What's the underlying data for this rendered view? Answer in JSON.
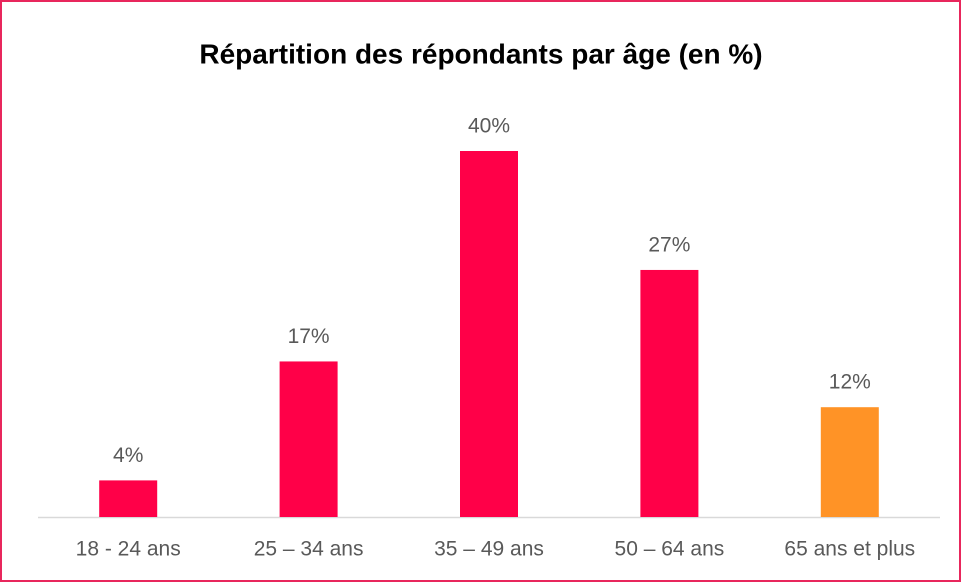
{
  "chart_data": {
    "type": "bar",
    "title": "Répartition des répondants par âge (en %)",
    "categories": [
      "18 - 24 ans",
      "25 – 34 ans",
      "35 – 49 ans",
      "50 – 64 ans",
      "65 ans et plus"
    ],
    "values": [
      4,
      17,
      40,
      27,
      12
    ],
    "value_labels": [
      "4%",
      "17%",
      "40%",
      "27%",
      "12%"
    ],
    "colors": [
      "#ff0048",
      "#ff0048",
      "#ff0048",
      "#ff0048",
      "#ff9326"
    ]
  }
}
